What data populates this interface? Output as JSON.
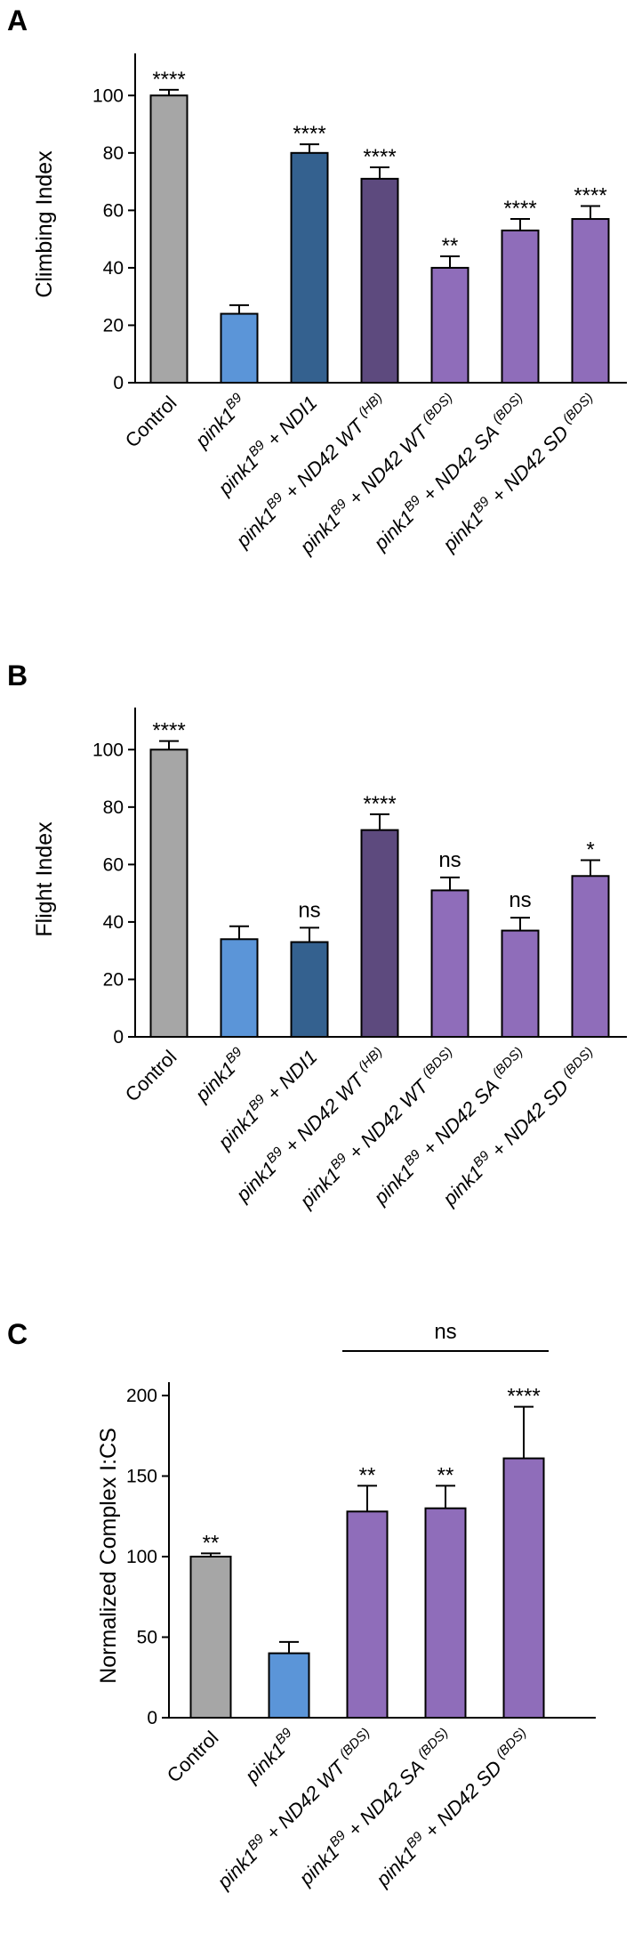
{
  "colors": {
    "control": "#a6a6a6",
    "pink1": "#5b95d8",
    "ndi1": "#34618f",
    "nd42_hb": "#5d4a7e",
    "nd42_bds": "#8f6dba",
    "outline": "#000000"
  },
  "panels": [
    {
      "letter": "A",
      "ylabel": "Climbing Index",
      "ylim": [
        0,
        110
      ],
      "yticks": [
        "0",
        "20",
        "40",
        "60",
        "80",
        "100"
      ]
    },
    {
      "letter": "B",
      "ylabel": "Flight Index",
      "ylim": [
        0,
        110
      ],
      "yticks": [
        "0",
        "20",
        "40",
        "60",
        "80",
        "100"
      ]
    },
    {
      "letter": "C",
      "ylabel": "Normalized Complex I:CS",
      "ylim": [
        0,
        200
      ],
      "yticks": [
        "0",
        "50",
        "100",
        "150",
        "200"
      ],
      "bracket_label": "ns"
    }
  ],
  "chart_data": [
    {
      "type": "bar",
      "title": "A",
      "ylabel": "Climbing Index",
      "ylim": [
        0,
        110
      ],
      "categories": [
        "Control",
        "pink1B9",
        "pink1B9 + NDI1",
        "pink1B9 + ND42 WT (HB)",
        "pink1B9 + ND42 WT (BDS)",
        "pink1B9 + ND42 SA (BDS)",
        "pink1B9 + ND42 SD (BDS)"
      ],
      "values": [
        100,
        24,
        80,
        71,
        40,
        53,
        57
      ],
      "errors": [
        2,
        3,
        3,
        4,
        4,
        4,
        4.5
      ],
      "significance": [
        "****",
        "",
        "****",
        "****",
        "**",
        "****",
        "****"
      ],
      "colors": [
        "#a6a6a6",
        "#5b95d8",
        "#34618f",
        "#5d4a7e",
        "#8f6dba",
        "#8f6dba",
        "#8f6dba"
      ]
    },
    {
      "type": "bar",
      "title": "B",
      "ylabel": "Flight Index",
      "ylim": [
        0,
        110
      ],
      "categories": [
        "Control",
        "pink1B9",
        "pink1B9 + NDI1",
        "pink1B9 + ND42 WT (HB)",
        "pink1B9 + ND42 WT (BDS)",
        "pink1B9 + ND42 SA (BDS)",
        "pink1B9 + ND42 SD (BDS)"
      ],
      "values": [
        100,
        34,
        33,
        72,
        51,
        37,
        56
      ],
      "errors": [
        3,
        4.5,
        5,
        5.5,
        4.5,
        4.5,
        5.5
      ],
      "significance": [
        "****",
        "",
        "ns",
        "****",
        "ns",
        "ns",
        "*"
      ],
      "colors": [
        "#a6a6a6",
        "#5b95d8",
        "#34618f",
        "#5d4a7e",
        "#8f6dba",
        "#8f6dba",
        "#8f6dba"
      ]
    },
    {
      "type": "bar",
      "title": "C",
      "ylabel": "Normalized Complex I:CS",
      "ylim": [
        0,
        200
      ],
      "categories": [
        "Control",
        "pink1B9",
        "pink1B9 + ND42 WT (BDS)",
        "pink1B9 + ND42 SA (BDS)",
        "pink1B9 + ND42 SD (BDS)"
      ],
      "values": [
        100,
        40,
        128,
        130,
        161
      ],
      "errors": [
        2,
        7,
        16,
        14,
        32
      ],
      "significance": [
        "**",
        "",
        "**",
        "**",
        "****"
      ],
      "colors": [
        "#a6a6a6",
        "#5b95d8",
        "#8f6dba",
        "#8f6dba",
        "#8f6dba"
      ],
      "bracket": {
        "from": 2,
        "to": 4,
        "label": "ns"
      }
    }
  ]
}
